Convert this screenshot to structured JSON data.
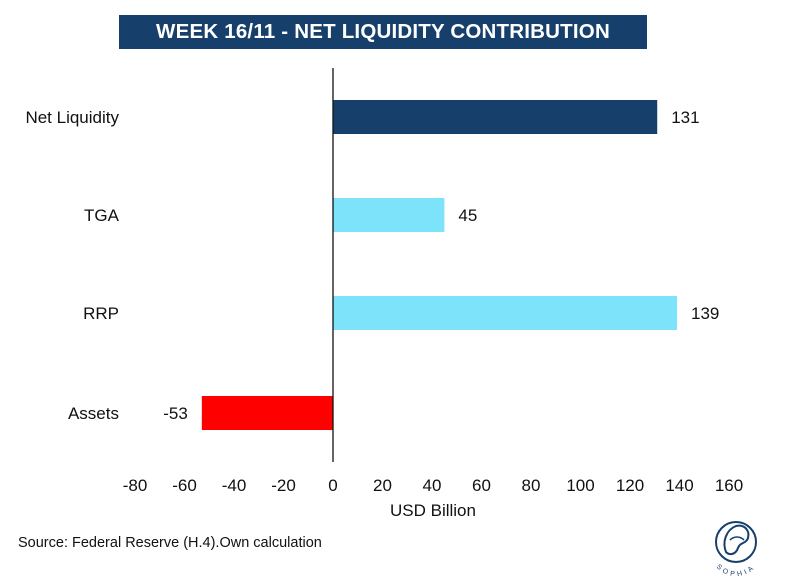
{
  "chart_data": {
    "type": "bar",
    "orientation": "horizontal",
    "title": "WEEK 16/11 - NET LIQUIDITY CONTRIBUTION",
    "xlabel": "USD Billion",
    "ylabel": "",
    "categories": [
      "Net Liquidity",
      "TGA",
      "RRP",
      "Assets"
    ],
    "values": [
      131,
      45,
      139,
      -53
    ],
    "data_labels": [
      "131",
      "45",
      "139",
      "-53"
    ],
    "bar_colors": [
      "#16406b",
      "#7de3fa",
      "#7de3fa",
      "#ff0000"
    ],
    "xlim": [
      -80,
      160
    ],
    "xticks": [
      -80,
      -60,
      -40,
      -20,
      0,
      20,
      40,
      60,
      80,
      100,
      120,
      140,
      160
    ],
    "xtick_labels": [
      "-80",
      "-60",
      "-40",
      "-20",
      "0",
      "20",
      "40",
      "60",
      "80",
      "100",
      "120",
      "140",
      "160"
    ],
    "grid": false,
    "legend": "none"
  },
  "source_text": "Source: Federal Reserve (H.4).Own calculation",
  "logo": {
    "icon": "sophia-logo-icon",
    "text": "SOPHIA"
  }
}
